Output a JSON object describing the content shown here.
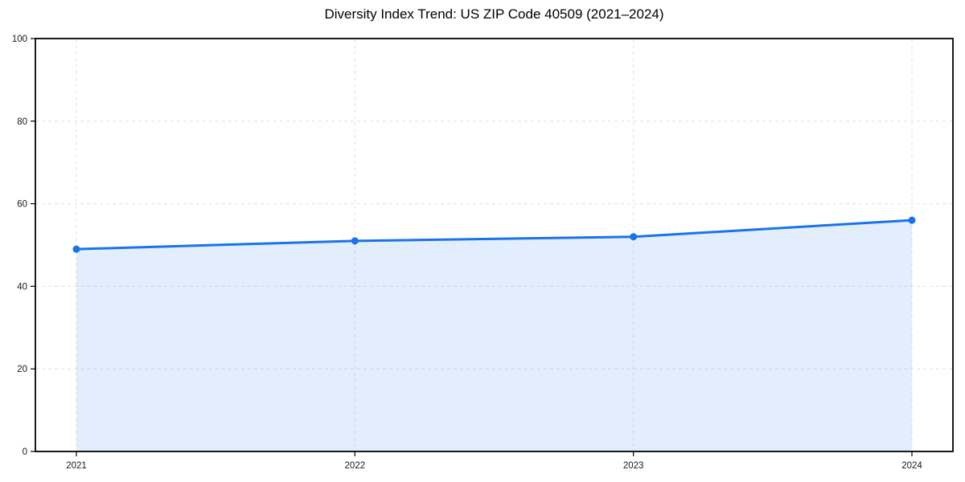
{
  "chart_data": {
    "type": "line",
    "title": "Diversity Index Trend: US ZIP Code 40509 (2021–2024)",
    "categories": [
      "2021",
      "2022",
      "2023",
      "2024"
    ],
    "series": [
      {
        "name": "Diversity Index",
        "values": [
          49,
          51,
          52,
          56
        ]
      }
    ],
    "xlabel": "",
    "ylabel": "",
    "ylim": [
      0,
      100
    ],
    "yticks": [
      0,
      20,
      40,
      60,
      80,
      100
    ],
    "grid": true,
    "grid_style": "dashed",
    "legend": "none",
    "area_fill": true,
    "markers": true,
    "colors": {
      "line": "#1a73e8",
      "marker": "#1a73e8",
      "area": "rgba(26,115,232,0.12)",
      "grid": "#e0e0e0",
      "spine": "#000000",
      "tick_label": "#1a1a1a",
      "title": "#000000"
    }
  }
}
